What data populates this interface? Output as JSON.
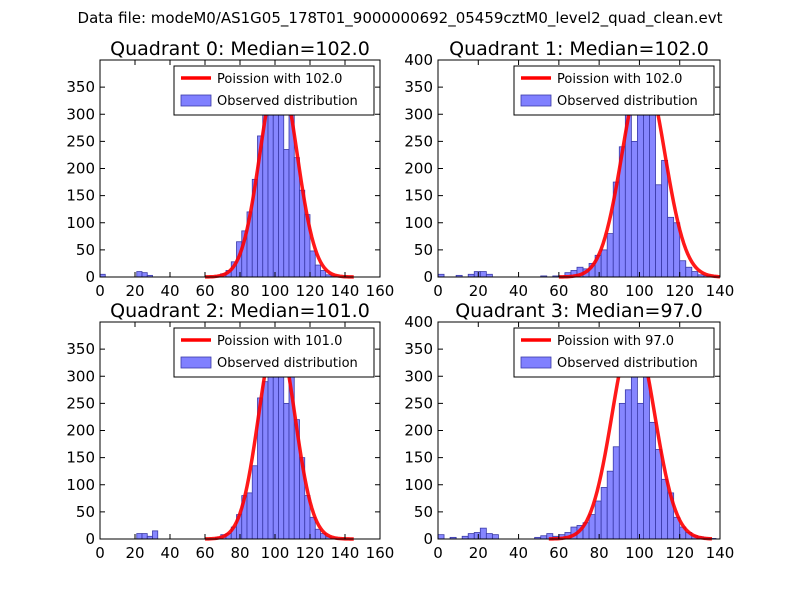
{
  "suptitle": "Data file: modeM0/AS1G05_178T01_9000000692_05459cztM0_level2_quad_clean.evt",
  "colors": {
    "bar_fill": "#8080ff",
    "bar_edge": "#3a3aa8",
    "curve": "#ff0000",
    "axis": "#000000"
  },
  "chart_data": [
    {
      "type": "bar",
      "title": "Quadrant 0: Median=102.0",
      "xlim": [
        0,
        160
      ],
      "ylim": [
        0,
        400
      ],
      "xticks": [
        0,
        20,
        40,
        60,
        80,
        100,
        120,
        140,
        160
      ],
      "yticks": [
        0,
        50,
        100,
        150,
        200,
        250,
        300,
        350
      ],
      "ytick_labels": [
        "0",
        "50",
        "100",
        "150",
        "200",
        "250",
        "300",
        "350"
      ],
      "legend": {
        "position": "top-right",
        "curve_label": "Poission with 102.0",
        "bar_label": "Observed distribution"
      },
      "series": [
        {
          "name": "Observed distribution",
          "kind": "hist",
          "bin_width": 3,
          "bins": [
            [
              0,
              5
            ],
            [
              21,
              10
            ],
            [
              24,
              8
            ],
            [
              27,
              3
            ],
            [
              66,
              2
            ],
            [
              69,
              6
            ],
            [
              72,
              12
            ],
            [
              75,
              28
            ],
            [
              78,
              65
            ],
            [
              81,
              85
            ],
            [
              84,
              120
            ],
            [
              87,
              180
            ],
            [
              90,
              260
            ],
            [
              93,
              300
            ],
            [
              96,
              320
            ],
            [
              99,
              340
            ],
            [
              102,
              360
            ],
            [
              105,
              235
            ],
            [
              108,
              300
            ],
            [
              111,
              220
            ],
            [
              114,
              160
            ],
            [
              117,
              115
            ],
            [
              120,
              48
            ],
            [
              123,
              22
            ],
            [
              126,
              12
            ],
            [
              129,
              4
            ],
            [
              132,
              2
            ]
          ]
        },
        {
          "name": "Poission with 102.0",
          "kind": "curve",
          "mean": 102.0,
          "peak": 380,
          "sigma": 10.5,
          "x_range": [
            60,
            145
          ]
        }
      ]
    },
    {
      "type": "bar",
      "title": "Quadrant 1: Median=102.0",
      "xlim": [
        0,
        140
      ],
      "ylim": [
        0,
        400
      ],
      "xticks": [
        0,
        20,
        40,
        60,
        80,
        100,
        120,
        140
      ],
      "yticks": [
        0,
        50,
        100,
        150,
        200,
        250,
        300,
        350,
        400
      ],
      "ytick_labels": [
        "0",
        "50",
        "100",
        "150",
        "200",
        "250",
        "300",
        "350",
        "400"
      ],
      "legend": {
        "position": "top-right",
        "curve_label": "Poission with 102.0",
        "bar_label": "Observed distribution"
      },
      "series": [
        {
          "name": "Observed distribution",
          "kind": "hist",
          "bin_width": 3,
          "bins": [
            [
              0,
              5
            ],
            [
              9,
              3
            ],
            [
              15,
              5
            ],
            [
              18,
              10
            ],
            [
              21,
              10
            ],
            [
              24,
              5
            ],
            [
              51,
              2
            ],
            [
              57,
              2
            ],
            [
              60,
              2
            ],
            [
              63,
              8
            ],
            [
              66,
              12
            ],
            [
              69,
              18
            ],
            [
              72,
              15
            ],
            [
              75,
              25
            ],
            [
              78,
              40
            ],
            [
              81,
              50
            ],
            [
              84,
              80
            ],
            [
              87,
              175
            ],
            [
              90,
              240
            ],
            [
              93,
              330
            ],
            [
              96,
              250
            ],
            [
              99,
              300
            ],
            [
              102,
              370
            ],
            [
              105,
              340
            ],
            [
              108,
              170
            ],
            [
              111,
              215
            ],
            [
              114,
              110
            ],
            [
              117,
              100
            ],
            [
              120,
              30
            ],
            [
              123,
              18
            ],
            [
              126,
              10
            ],
            [
              129,
              4
            ],
            [
              132,
              3
            ],
            [
              135,
              2
            ]
          ]
        },
        {
          "name": "Poission with 102.0",
          "kind": "curve",
          "mean": 102.0,
          "peak": 380,
          "sigma": 10.5,
          "x_range": [
            60,
            140
          ]
        }
      ]
    },
    {
      "type": "bar",
      "title": "Quadrant 2: Median=101.0",
      "xlim": [
        0,
        160
      ],
      "ylim": [
        0,
        400
      ],
      "xticks": [
        0,
        20,
        40,
        60,
        80,
        100,
        120,
        140,
        160
      ],
      "yticks": [
        0,
        50,
        100,
        150,
        200,
        250,
        300,
        350
      ],
      "ytick_labels": [
        "0",
        "50",
        "100",
        "150",
        "200",
        "250",
        "300",
        "350"
      ],
      "legend": {
        "position": "top-right",
        "curve_label": "Poission with 101.0",
        "bar_label": "Observed distribution"
      },
      "series": [
        {
          "name": "Observed distribution",
          "kind": "hist",
          "bin_width": 3,
          "bins": [
            [
              21,
              10
            ],
            [
              24,
              10
            ],
            [
              27,
              5
            ],
            [
              30,
              15
            ],
            [
              66,
              3
            ],
            [
              69,
              8
            ],
            [
              72,
              10
            ],
            [
              75,
              22
            ],
            [
              78,
              45
            ],
            [
              81,
              80
            ],
            [
              84,
              85
            ],
            [
              87,
              135
            ],
            [
              90,
              260
            ],
            [
              93,
              290
            ],
            [
              96,
              340
            ],
            [
              99,
              370
            ],
            [
              102,
              350
            ],
            [
              105,
              250
            ],
            [
              108,
              300
            ],
            [
              111,
              220
            ],
            [
              114,
              150
            ],
            [
              117,
              80
            ],
            [
              120,
              40
            ],
            [
              123,
              18
            ],
            [
              126,
              10
            ],
            [
              129,
              4
            ],
            [
              132,
              2
            ]
          ]
        },
        {
          "name": "Poission with 101.0",
          "kind": "curve",
          "mean": 101.0,
          "peak": 378,
          "sigma": 10.3,
          "x_range": [
            60,
            145
          ]
        }
      ]
    },
    {
      "type": "bar",
      "title": "Quadrant 3: Median=97.0",
      "xlim": [
        0,
        140
      ],
      "ylim": [
        0,
        400
      ],
      "xticks": [
        0,
        20,
        40,
        60,
        80,
        100,
        120,
        140
      ],
      "yticks": [
        0,
        50,
        100,
        150,
        200,
        250,
        300,
        350,
        400
      ],
      "ytick_labels": [
        "0",
        "50",
        "100",
        "150",
        "200",
        "250",
        "300",
        "350",
        "400"
      ],
      "legend": {
        "position": "top-right",
        "curve_label": "Poission with 97.0",
        "bar_label": "Observed distribution"
      },
      "series": [
        {
          "name": "Observed distribution",
          "kind": "hist",
          "bin_width": 3,
          "bins": [
            [
              0,
              8
            ],
            [
              6,
              3
            ],
            [
              12,
              5
            ],
            [
              15,
              10
            ],
            [
              18,
              12
            ],
            [
              21,
              20
            ],
            [
              24,
              10
            ],
            [
              27,
              8
            ],
            [
              48,
              3
            ],
            [
              51,
              6
            ],
            [
              54,
              10
            ],
            [
              57,
              5
            ],
            [
              60,
              8
            ],
            [
              63,
              12
            ],
            [
              66,
              22
            ],
            [
              69,
              25
            ],
            [
              72,
              30
            ],
            [
              75,
              45
            ],
            [
              78,
              70
            ],
            [
              81,
              95
            ],
            [
              84,
              125
            ],
            [
              87,
              170
            ],
            [
              90,
              250
            ],
            [
              93,
              275
            ],
            [
              96,
              340
            ],
            [
              99,
              250
            ],
            [
              102,
              385
            ],
            [
              105,
              215
            ],
            [
              108,
              165
            ],
            [
              111,
              110
            ],
            [
              114,
              85
            ],
            [
              117,
              40
            ],
            [
              120,
              22
            ],
            [
              123,
              12
            ],
            [
              126,
              6
            ],
            [
              129,
              4
            ],
            [
              132,
              2
            ],
            [
              135,
              1
            ]
          ]
        },
        {
          "name": "Poission with 97.0",
          "kind": "curve",
          "mean": 97.0,
          "peak": 382,
          "sigma": 10.5,
          "x_range": [
            55,
            136
          ]
        }
      ]
    }
  ]
}
